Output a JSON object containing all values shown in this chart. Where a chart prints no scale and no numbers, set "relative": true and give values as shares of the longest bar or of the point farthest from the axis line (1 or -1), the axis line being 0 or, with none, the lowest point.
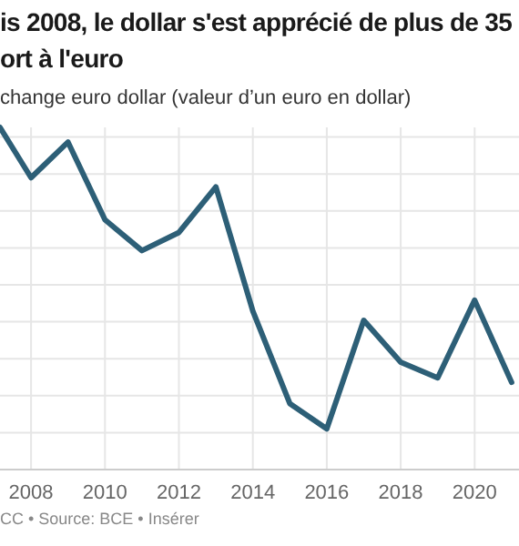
{
  "chart_data": {
    "type": "line",
    "title": "is 2008, le dollar s'est apprécié de plus de 35\nort à l'euro",
    "subtitle": "change euro dollar (valeur d’un euro en dollar)",
    "x": [
      2007.16,
      2008,
      2009,
      2010,
      2011,
      2012,
      2013,
      2014,
      2015,
      2016,
      2017,
      2018,
      2019,
      2020,
      2021
    ],
    "series": [
      {
        "color": "#2d5f77",
        "values": [
          1,
          0.853,
          0.957,
          0.73,
          0.64,
          0.693,
          0.826,
          0.463,
          0.193,
          0.119,
          0.436,
          0.314,
          0.268,
          0.495,
          0.255
        ]
      }
    ],
    "relative": true,
    "xlim": [
      2007.16,
      2021.2
    ],
    "xticks": [
      2008,
      2010,
      2012,
      2014,
      2016,
      2018,
      2020
    ],
    "grid": true,
    "marker": "none",
    "line_style": "solid",
    "annotations": [
      "CC • Source: BCE • Insérer"
    ]
  }
}
